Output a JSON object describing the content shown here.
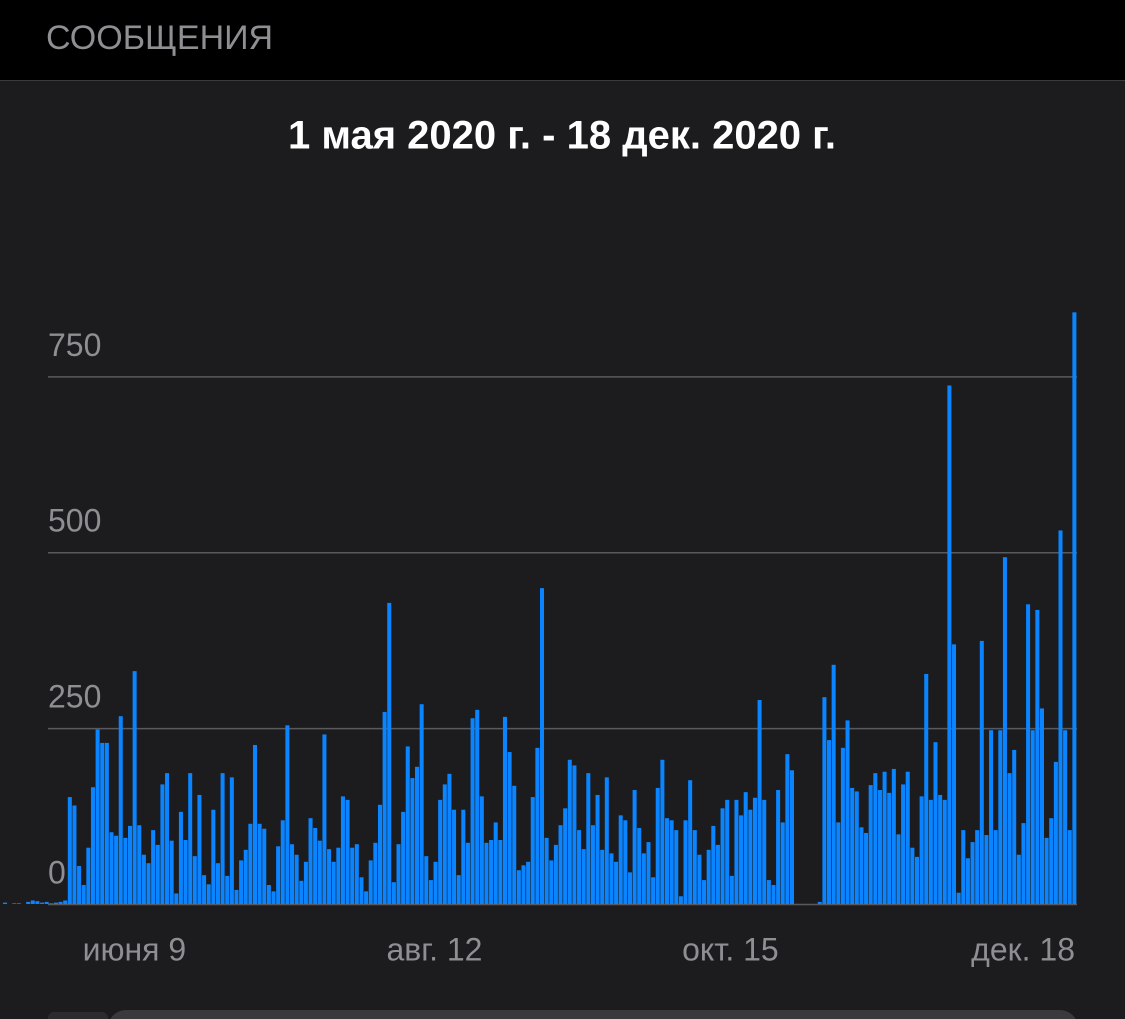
{
  "header": {
    "title": "СООБЩЕНИЯ"
  },
  "chart_data": {
    "type": "bar",
    "title": "1 мая 2020 г. - 18 дек. 2020 г.",
    "categories": [
      null,
      null,
      null,
      null,
      null,
      null,
      null,
      null,
      null,
      null,
      null,
      null,
      null,
      null,
      null,
      null,
      null,
      null,
      null,
      null,
      null,
      null,
      null,
      null,
      null,
      null,
      null,
      null,
      null,
      null,
      null,
      null,
      null,
      null,
      null,
      null,
      null,
      null,
      null,
      "июня 9",
      null,
      null,
      null,
      null,
      null,
      null,
      null,
      null,
      null,
      null,
      null,
      null,
      null,
      null,
      null,
      null,
      null,
      null,
      null,
      null,
      null,
      null,
      null,
      null,
      null,
      null,
      null,
      null,
      null,
      null,
      null,
      null,
      null,
      null,
      null,
      null,
      null,
      null,
      null,
      null,
      null,
      null,
      null,
      null,
      null,
      null,
      null,
      null,
      null,
      null,
      null,
      null,
      null,
      null,
      null,
      null,
      null,
      null,
      null,
      null,
      null,
      null,
      null,
      "авг. 12",
      null,
      null,
      null,
      null,
      null,
      null,
      null,
      null,
      null,
      null,
      null,
      null,
      null,
      null,
      null,
      null,
      null,
      null,
      null,
      null,
      null,
      null,
      null,
      null,
      null,
      null,
      null,
      null,
      null,
      null,
      null,
      null,
      null,
      null,
      null,
      null,
      null,
      null,
      null,
      null,
      null,
      null,
      null,
      null,
      null,
      null,
      null,
      null,
      null,
      null,
      null,
      null,
      null,
      null,
      null,
      null,
      null,
      null,
      null,
      null,
      null,
      null,
      null,
      "окт. 15",
      null,
      null,
      null,
      null,
      null,
      null,
      null,
      null,
      null,
      null,
      null,
      null,
      null,
      null,
      null,
      null,
      null,
      null,
      null,
      null,
      null,
      null,
      null,
      null,
      null,
      null,
      null,
      null,
      null,
      null,
      null,
      null,
      null,
      null,
      null,
      null,
      null,
      null,
      null,
      null,
      null,
      null,
      null,
      null,
      null,
      null,
      null,
      null,
      null,
      null,
      null,
      null,
      null,
      null,
      null,
      null,
      null,
      null,
      null,
      null,
      null,
      null,
      null,
      "дек. 18"
    ],
    "values": [
      2,
      0,
      1,
      1,
      0,
      3,
      5,
      4,
      2,
      3,
      1,
      2,
      3,
      5,
      152,
      140,
      54,
      27,
      80,
      166,
      248,
      229,
      229,
      102,
      97,
      267,
      94,
      111,
      331,
      112,
      70,
      58,
      105,
      84,
      170,
      186,
      90,
      15,
      131,
      91,
      186,
      68,
      155,
      41,
      28,
      134,
      58,
      186,
      40,
      180,
      20,
      62,
      77,
      114,
      226,
      114,
      107,
      27,
      18,
      82,
      119,
      254,
      85,
      70,
      33,
      60,
      122,
      108,
      90,
      241,
      78,
      60,
      80,
      153,
      148,
      80,
      85,
      38,
      18,
      62,
      87,
      141,
      273,
      428,
      31,
      85,
      131,
      224,
      179,
      195,
      284,
      68,
      34,
      60,
      148,
      170,
      185,
      134,
      41,
      134,
      87,
      264,
      276,
      153,
      87,
      91,
      116,
      91,
      266,
      216,
      168,
      48,
      55,
      60,
      152,
      222,
      449,
      94,
      62,
      84,
      112,
      136,
      205,
      197,
      105,
      78,
      186,
      112,
      155,
      77,
      180,
      72,
      60,
      126,
      119,
      45,
      162,
      108,
      72,
      88,
      38,
      165,
      205,
      122,
      119,
      105,
      11,
      119,
      176,
      105,
      70,
      34,
      77,
      111,
      84,
      136,
      148,
      40,
      148,
      126,
      159,
      134,
      151,
      290,
      148,
      34,
      27,
      162,
      116,
      213,
      190,
      0,
      0,
      0,
      0,
      0,
      3,
      294,
      233,
      340,
      116,
      222,
      261,
      165,
      160,
      109,
      101,
      169,
      186,
      162,
      188,
      158,
      192,
      99,
      170,
      188,
      80,
      67,
      153,
      327,
      148,
      230,
      155,
      148,
      737,
      369,
      16,
      105,
      65,
      88,
      105,
      374,
      98,
      247,
      105,
      247,
      493,
      186,
      219,
      70,
      115,
      426,
      247,
      418,
      278,
      94,
      122,
      202,
      531,
      247,
      105,
      841
    ],
    "color": "#0a84ff",
    "ylim": [
      0,
      850
    ],
    "yticks": [
      0,
      250,
      500,
      750
    ],
    "grid": true
  }
}
